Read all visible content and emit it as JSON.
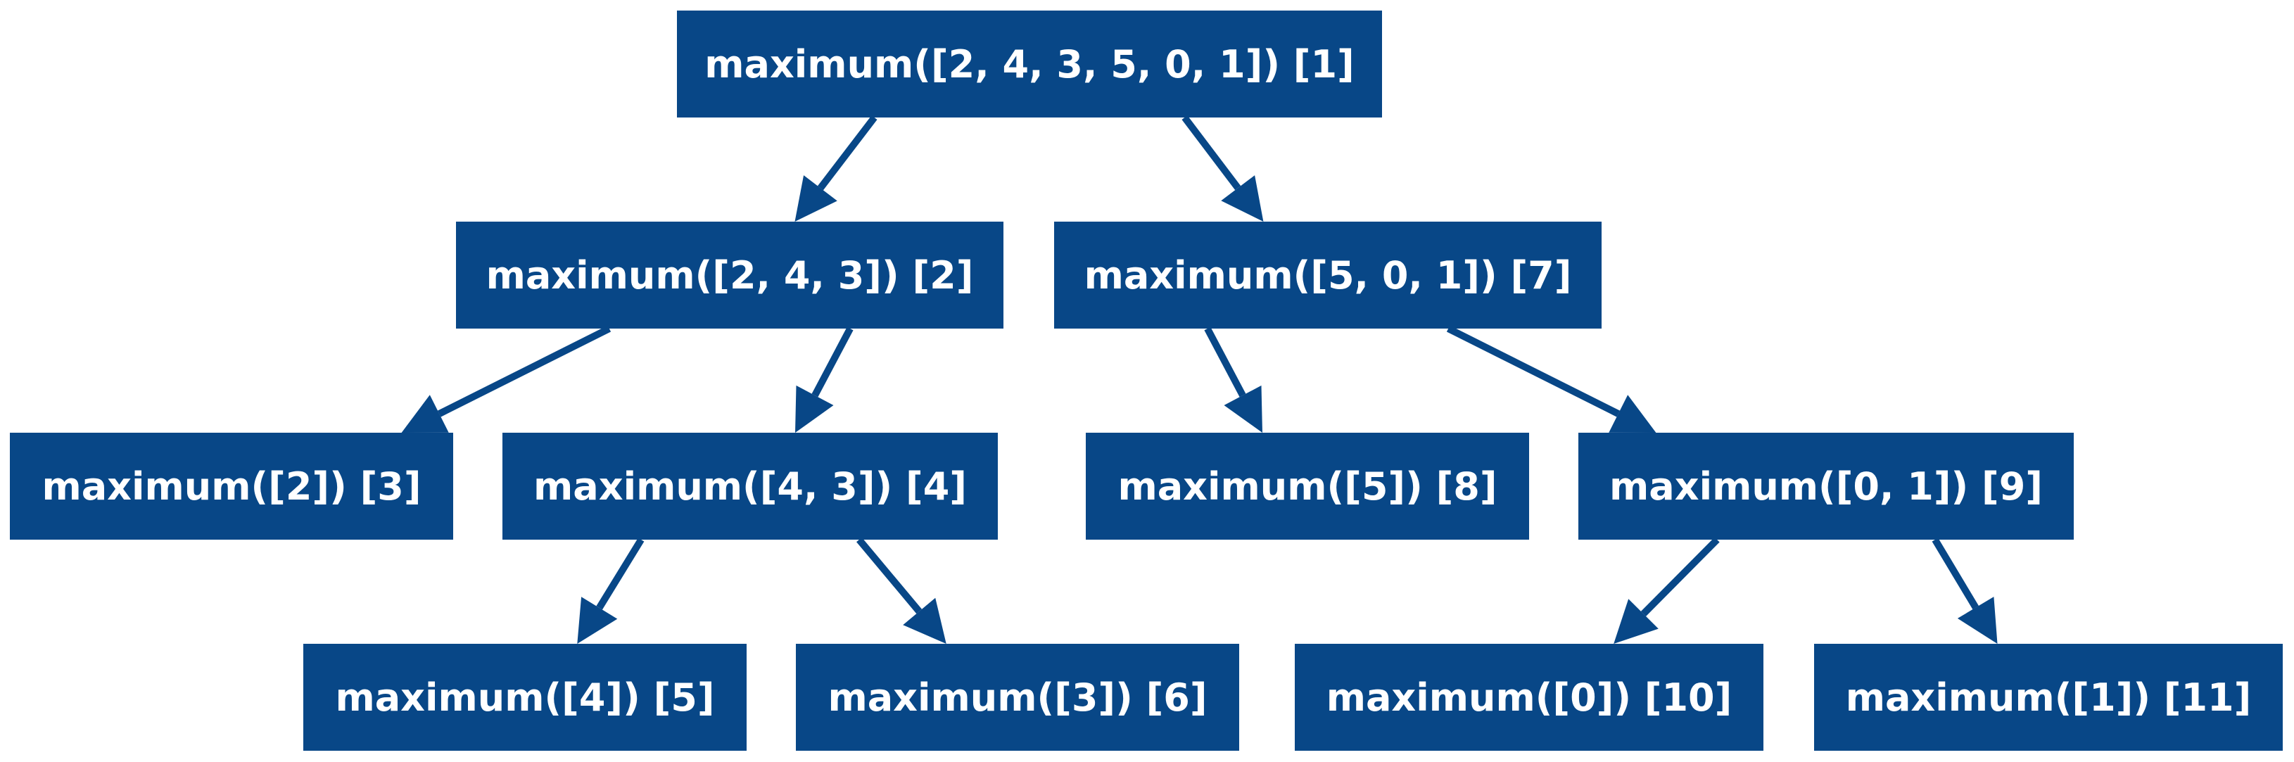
{
  "diagram": {
    "nodes": [
      {
        "id": "n1",
        "label": "maximum([2, 4, 3, 5, 0, 1]) [1]"
      },
      {
        "id": "n2",
        "label": "maximum([2, 4, 3]) [2]"
      },
      {
        "id": "n7",
        "label": "maximum([5, 0, 1]) [7]"
      },
      {
        "id": "n3",
        "label": "maximum([2]) [3]"
      },
      {
        "id": "n4",
        "label": "maximum([4, 3]) [4]"
      },
      {
        "id": "n8",
        "label": "maximum([5]) [8]"
      },
      {
        "id": "n9",
        "label": "maximum([0, 1]) [9]"
      },
      {
        "id": "n5",
        "label": "maximum([4]) [5]"
      },
      {
        "id": "n6",
        "label": "maximum([3]) [6]"
      },
      {
        "id": "n10",
        "label": "maximum([0]) [10]"
      },
      {
        "id": "n11",
        "label": "maximum([1]) [11]"
      }
    ],
    "edges": [
      {
        "from": "n1",
        "to": "n2"
      },
      {
        "from": "n1",
        "to": "n7"
      },
      {
        "from": "n2",
        "to": "n3"
      },
      {
        "from": "n2",
        "to": "n4"
      },
      {
        "from": "n4",
        "to": "n5"
      },
      {
        "from": "n4",
        "to": "n6"
      },
      {
        "from": "n7",
        "to": "n8"
      },
      {
        "from": "n7",
        "to": "n9"
      },
      {
        "from": "n9",
        "to": "n10"
      },
      {
        "from": "n9",
        "to": "n11"
      }
    ],
    "colors": {
      "node_fill": "#084787",
      "node_text": "#ffffff",
      "edge": "#084787"
    }
  }
}
